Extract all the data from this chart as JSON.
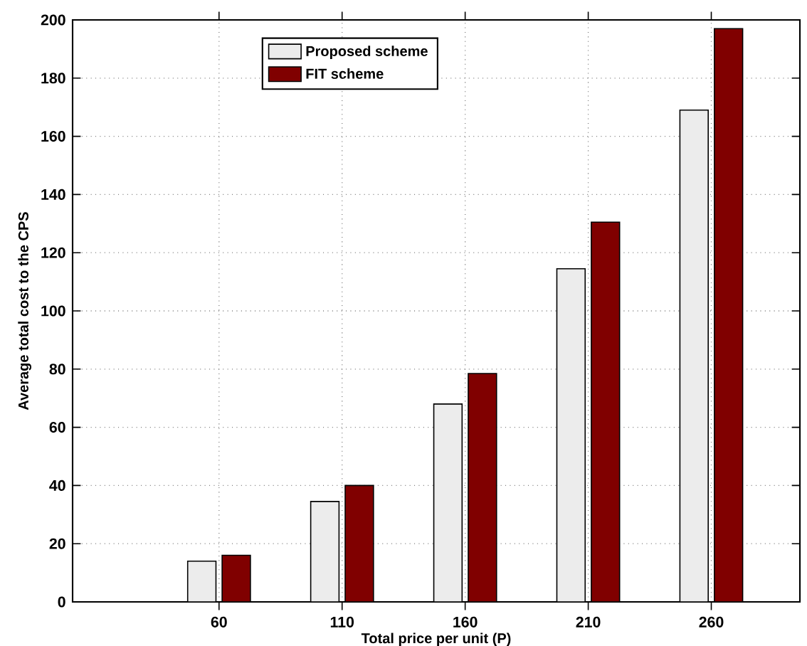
{
  "chart_data": {
    "type": "bar",
    "xlabel": "Total price per unit (P)",
    "ylabel": "Average total cost to the CPS",
    "categories": [
      "60",
      "110",
      "160",
      "210",
      "260"
    ],
    "series": [
      {
        "name": "Proposed scheme",
        "color": "#ececec",
        "values": [
          14,
          34.5,
          68,
          114.5,
          169
        ]
      },
      {
        "name": "FIT scheme",
        "color": "#800000",
        "values": [
          16,
          40,
          78.5,
          130.5,
          197
        ]
      }
    ],
    "ylim": [
      0,
      200
    ],
    "yticks": [
      0,
      20,
      40,
      60,
      80,
      100,
      120,
      140,
      160,
      180,
      200
    ],
    "grid": true,
    "legend": "top left"
  }
}
